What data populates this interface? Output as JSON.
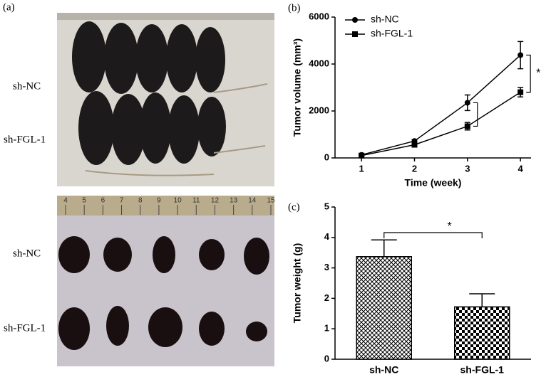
{
  "photo": {
    "panel": "(a)",
    "labels": [
      "sh-NC",
      "sh-FGL-1",
      "sh-NC",
      "sh-FGL-1"
    ],
    "ruler_ticks": [
      4,
      5,
      6,
      7,
      8,
      9,
      10,
      11,
      12,
      13,
      14,
      15
    ]
  },
  "chart_data": [
    {
      "type": "line",
      "panel": "(b)",
      "xlabel": "Time (week)",
      "ylabel": "Tumor volume (mm³)",
      "x": [
        1,
        2,
        3,
        4
      ],
      "xlim": [
        0.5,
        4.2
      ],
      "xticks": [
        1,
        2,
        3,
        4
      ],
      "ylim": [
        0,
        6000
      ],
      "yticks": [
        0,
        2000,
        4000,
        6000
      ],
      "legend": "upper left",
      "series": [
        {
          "name": "sh-NC",
          "color": "#000000",
          "marker": "circle",
          "values": [
            130,
            720,
            2350,
            4380
          ],
          "errors": [
            40,
            60,
            330,
            580
          ]
        },
        {
          "name": "sh-FGL-1",
          "color": "#000000",
          "marker": "square",
          "values": [
            100,
            560,
            1350,
            2800
          ],
          "errors": [
            30,
            50,
            160,
            200
          ]
        }
      ],
      "annotations": [
        "*"
      ]
    },
    {
      "type": "bar",
      "panel": "(c)",
      "ylabel": "Tumor weight (g)",
      "categories": [
        "sh-NC",
        "sh-FGL-1"
      ],
      "values": [
        3.37,
        1.72
      ],
      "errors": [
        0.55,
        0.43
      ],
      "patterns": [
        "crosshatch",
        "checker"
      ],
      "color": "#000000",
      "ylim": [
        0,
        5
      ],
      "yticks": [
        0,
        1,
        2,
        3,
        4,
        5
      ],
      "annotations": [
        "*"
      ]
    }
  ]
}
